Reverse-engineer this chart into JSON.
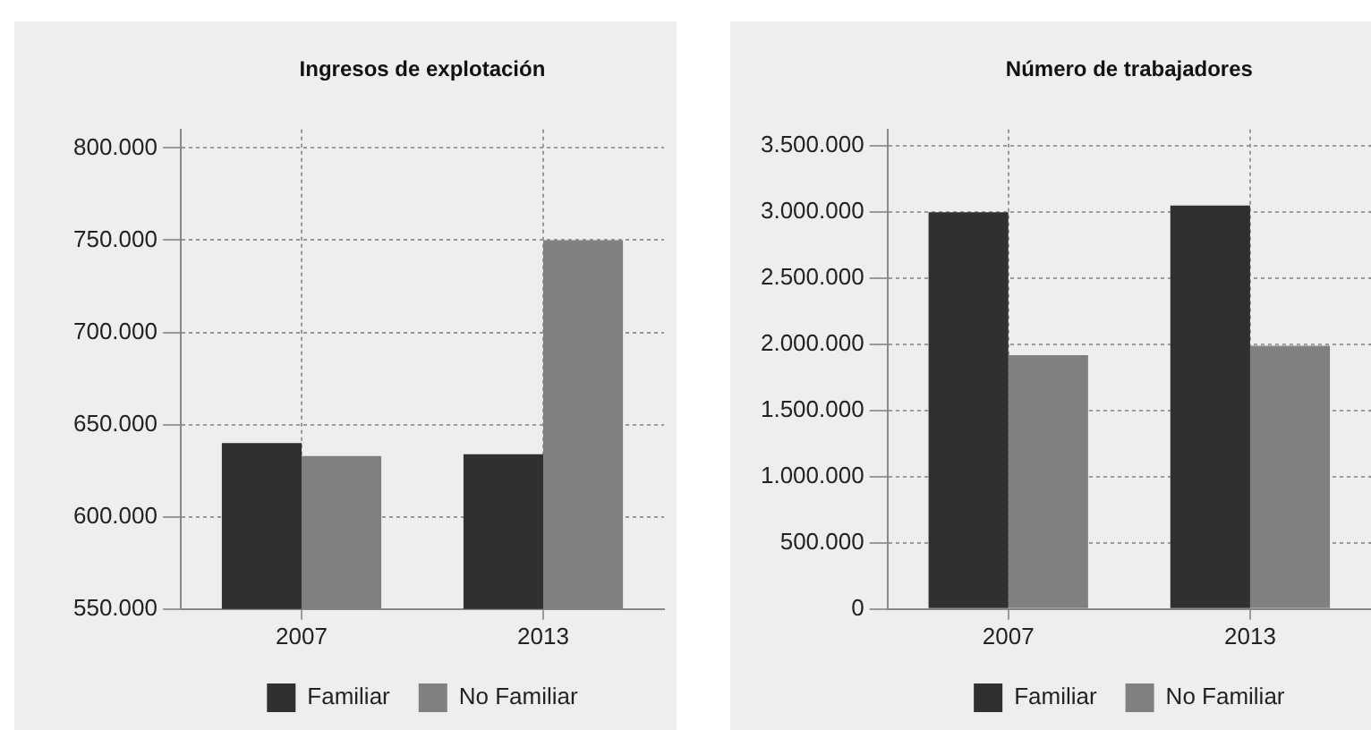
{
  "chart_data": [
    {
      "type": "bar",
      "title": "Ingresos de explotación",
      "categories": [
        "2007",
        "2013"
      ],
      "series": [
        {
          "name": "Familiar",
          "color": "#303030",
          "values": [
            640000,
            634000
          ]
        },
        {
          "name": "No Familiar",
          "color": "#808080",
          "values": [
            633000,
            750000
          ]
        }
      ],
      "ylim": [
        550000,
        810000
      ],
      "yticks": [
        {
          "value": 550000,
          "label": "550.000"
        },
        {
          "value": 600000,
          "label": "600.000"
        },
        {
          "value": 650000,
          "label": "650.000"
        },
        {
          "value": 700000,
          "label": "700.000"
        },
        {
          "value": 750000,
          "label": "750.000"
        },
        {
          "value": 800000,
          "label": "800.000"
        }
      ],
      "grid": true,
      "legend": "bottom"
    },
    {
      "type": "bar",
      "title": "Número de trabajadores",
      "categories": [
        "2007",
        "2013"
      ],
      "series": [
        {
          "name": "Familiar",
          "color": "#303030",
          "values": [
            3000000,
            3050000
          ]
        },
        {
          "name": "No Familiar",
          "color": "#808080",
          "values": [
            1920000,
            1990000
          ]
        }
      ],
      "ylim": [
        0,
        3625000
      ],
      "yticks": [
        0,
        {
          "value": 500000,
          "label": "500.000"
        },
        {
          "value": 1000000,
          "label": "1.000.000"
        },
        {
          "value": 1500000,
          "label": "1.500.000"
        },
        {
          "value": 2000000,
          "label": "2.000.000"
        },
        {
          "value": 2500000,
          "label": "2.500.000"
        },
        {
          "value": 3000000,
          "label": "3.000.000"
        },
        {
          "value": 3500000,
          "label": "3.500.000"
        }
      ],
      "grid": true,
      "legend": "bottom"
    }
  ]
}
